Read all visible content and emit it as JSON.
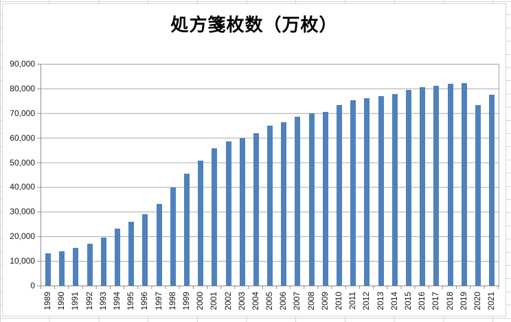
{
  "chart_data": {
    "type": "bar",
    "title": "処方箋枚数（万枚）",
    "xlabel": "",
    "ylabel": "",
    "categories": [
      "1989",
      "1990",
      "1991",
      "1992",
      "1993",
      "1994",
      "1995",
      "1996",
      "1997",
      "1998",
      "1999",
      "2000",
      "2001",
      "2002",
      "2003",
      "2004",
      "2005",
      "2006",
      "2007",
      "2008",
      "2009",
      "2010",
      "2011",
      "2012",
      "2013",
      "2014",
      "2015",
      "2016",
      "2017",
      "2018",
      "2019",
      "2020",
      "2021"
    ],
    "values": [
      13000,
      13900,
      15300,
      17100,
      19500,
      23200,
      26000,
      29100,
      33200,
      39900,
      45400,
      50600,
      55800,
      58600,
      60000,
      61900,
      64800,
      66200,
      68600,
      69900,
      70600,
      73200,
      75300,
      76200,
      76800,
      77800,
      79300,
      80400,
      81000,
      81800,
      82300,
      73400,
      77400
    ],
    "ylim": [
      0,
      90000
    ],
    "ytick_step": 10000,
    "ytick_labels": [
      "0",
      "10,000",
      "20,000",
      "30,000",
      "40,000",
      "50,000",
      "60,000",
      "70,000",
      "80,000",
      "90,000"
    ],
    "grid": true,
    "legend_position": "none"
  },
  "colors": {
    "bar": "#4F81BD",
    "gridline": "#A8A8A8",
    "axis": "#8E8E8E",
    "worksheet_cell_line": "#CCD5E3"
  }
}
